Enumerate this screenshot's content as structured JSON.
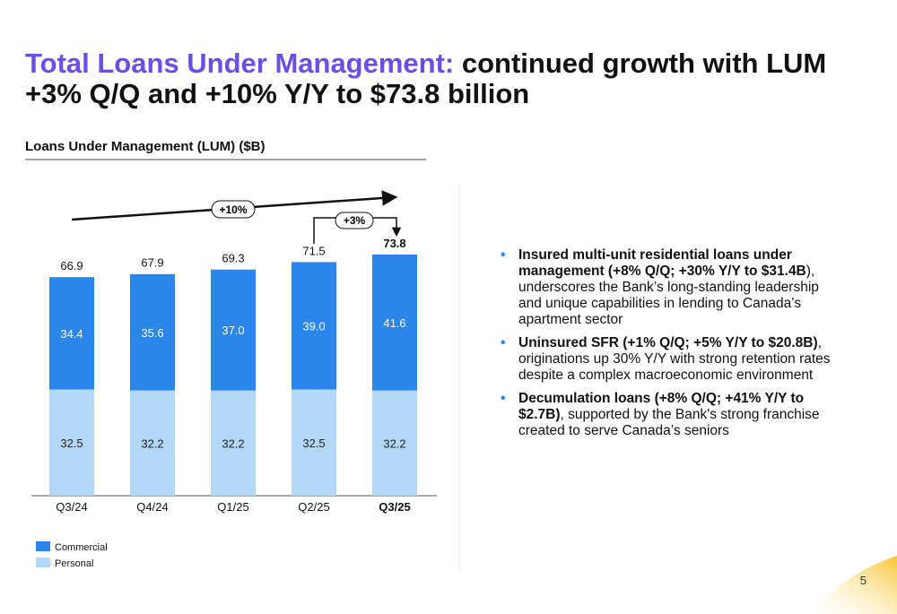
{
  "slide": {
    "title_highlight": "Total Loans Under Management:",
    "title_rest": "continued growth with LUM +3% Q/Q and +10% Y/Y to $73.8 billion",
    "bullets": [
      {
        "bold": "Insured multi-unit residential loans under management (+8% Q/Q; +30% Y/Y to $31.4B",
        "text": "), underscores the Bank’s long-standing leadership and unique capabilities in lending to Canada’s apartment sector"
      },
      {
        "bold": "Uninsured SFR (+1% Q/Q; +5% Y/Y to $20.8B)",
        "text": ", originations up 30% Y/Y with strong retention rates despite a complex macroeconomic environment"
      },
      {
        "bold": "Decumulation loans (+8% Q/Q; +41% Y/Y to $2.7B)",
        "text": ", supported by the Bank's strong franchise created to serve Canada’s seniors"
      }
    ],
    "page_number": 5
  },
  "chart_data": {
    "type": "stacked_bar",
    "title": "Loans Under Management (LUM) ($B)",
    "categories": [
      "Q3/24",
      "Q4/24",
      "Q1/25",
      "Q2/25",
      "Q3/25"
    ],
    "series": [
      {
        "name": "Personal",
        "color": "#b3d7f7",
        "values": [
          32.5,
          32.2,
          32.2,
          32.5,
          32.2
        ]
      },
      {
        "name": "Commercial",
        "color": "#2a86e8",
        "values": [
          34.4,
          35.6,
          37.0,
          39.0,
          41.6
        ],
        "value_labels": [
          "34.4",
          "35.6",
          "37.0",
          "39.0",
          "41.6"
        ]
      }
    ],
    "totals": [
      66.9,
      67.9,
      69.3,
      71.5,
      73.8
    ],
    "annotations": [
      "+10%",
      "+3%"
    ]
  }
}
